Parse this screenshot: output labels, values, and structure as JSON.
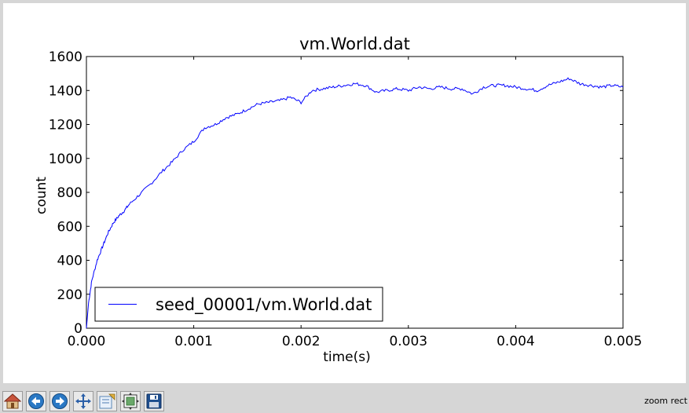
{
  "toolbar": {
    "buttons": [
      {
        "icon": "home-icon",
        "color": "#c8553d"
      },
      {
        "icon": "back-arrow-icon",
        "color": "#2a78c4"
      },
      {
        "icon": "forward-arrow-icon",
        "color": "#2a78c4"
      },
      {
        "icon": "pan-icon",
        "color": "#2a5fa8"
      },
      {
        "icon": "zoom-to-rect-icon",
        "color": "#5a87b8"
      },
      {
        "icon": "subplots-configure-icon",
        "color": "#3f7a3f"
      },
      {
        "icon": "save-icon",
        "color": "#1f4f8f"
      }
    ],
    "status": "zoom rect"
  },
  "chart_data": {
    "type": "line",
    "title": "vm.World.dat",
    "xlabel": "time(s)",
    "ylabel": "count",
    "xlim": [
      0.0,
      0.005
    ],
    "ylim": [
      0,
      1600
    ],
    "x_ticks": [
      "0.000",
      "0.001",
      "0.002",
      "0.003",
      "0.004",
      "0.005"
    ],
    "y_ticks": [
      "0",
      "200",
      "400",
      "600",
      "800",
      "1000",
      "1200",
      "1400",
      "1600"
    ],
    "grid": false,
    "legend_location": "lower-left",
    "series": [
      {
        "name": "seed_00001/vm.World.dat",
        "color": "#0000ff",
        "x": [
          0,
          2e-05,
          5e-05,
          0.0001,
          0.00015,
          0.0002,
          0.00025,
          0.0003,
          0.00035,
          0.0004,
          0.0005,
          0.0006,
          0.0007,
          0.0008,
          0.0009,
          0.001,
          0.0011,
          0.0012,
          0.0013,
          0.0014,
          0.0015,
          0.0016,
          0.0017,
          0.0018,
          0.0019,
          0.002,
          0.0021,
          0.0022,
          0.0023,
          0.0024,
          0.0025,
          0.0026,
          0.0027,
          0.0028,
          0.0029,
          0.003,
          0.0031,
          0.0032,
          0.0033,
          0.0034,
          0.0035,
          0.0036,
          0.0037,
          0.0038,
          0.0039,
          0.004,
          0.0041,
          0.0042,
          0.0043,
          0.0044,
          0.0045,
          0.0046,
          0.0047,
          0.0048,
          0.0049,
          0.005
        ],
        "y": [
          0,
          150,
          280,
          400,
          480,
          560,
          620,
          660,
          690,
          730,
          790,
          850,
          920,
          980,
          1050,
          1100,
          1180,
          1200,
          1240,
          1260,
          1290,
          1320,
          1330,
          1340,
          1360,
          1330,
          1400,
          1410,
          1420,
          1430,
          1440,
          1430,
          1390,
          1400,
          1410,
          1400,
          1420,
          1410,
          1420,
          1410,
          1410,
          1380,
          1420,
          1430,
          1430,
          1420,
          1410,
          1400,
          1430,
          1450,
          1470,
          1440,
          1430,
          1420,
          1430,
          1420
        ]
      }
    ]
  }
}
